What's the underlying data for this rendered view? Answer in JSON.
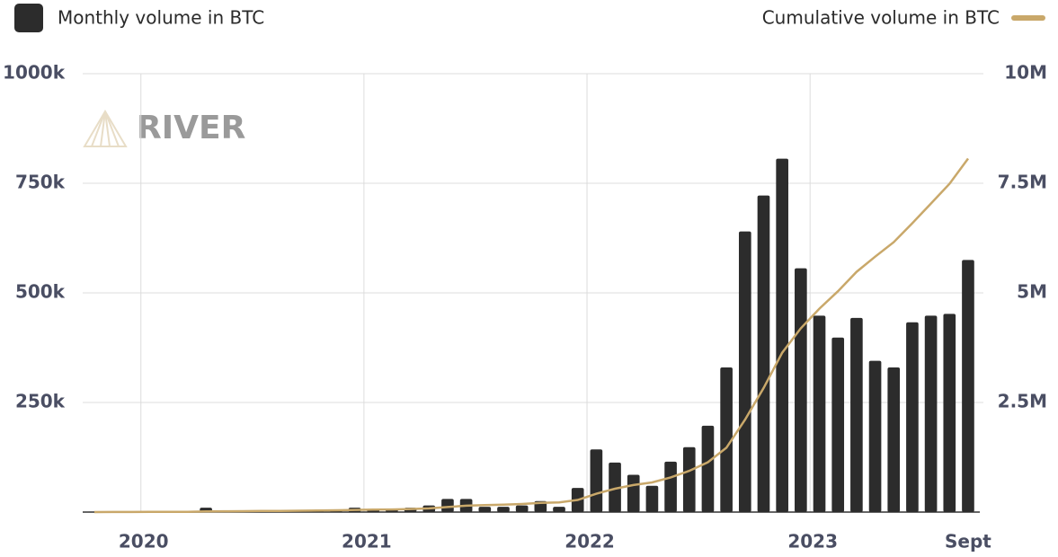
{
  "chart_data": {
    "type": "bar",
    "watermark": "RIVER",
    "categories": [
      null,
      null,
      null,
      "2020",
      null,
      null,
      null,
      null,
      null,
      null,
      null,
      null,
      null,
      null,
      null,
      "2021",
      null,
      null,
      null,
      null,
      null,
      null,
      null,
      null,
      null,
      null,
      null,
      "2022",
      null,
      null,
      null,
      null,
      null,
      null,
      null,
      null,
      null,
      null,
      null,
      "2023",
      null,
      null,
      null,
      null,
      null,
      null,
      null,
      "Sept"
    ],
    "series": [
      {
        "name": "Monthly volume in BTC",
        "color": "#2c2c2c",
        "values": [
          1000,
          1000,
          1000,
          1000,
          1000,
          2000,
          10000,
          2000,
          2000,
          3000,
          3000,
          4000,
          4000,
          5000,
          10000,
          5000,
          5000,
          10000,
          15000,
          30000,
          30000,
          12000,
          12000,
          15000,
          25000,
          12000,
          55000,
          143000,
          113000,
          85000,
          60000,
          115000,
          148000,
          197000,
          330000,
          640000,
          722000,
          806000,
          556000,
          448000,
          398000,
          443000,
          345000,
          330000,
          433000,
          448000,
          452000,
          575000
        ]
      },
      {
        "name": "Cumulative volume in BTC",
        "color": "#c9a86a",
        "type": "line",
        "axis": "y2",
        "values": [
          1000,
          2000,
          3000,
          4000,
          5000,
          7000,
          17000,
          19000,
          21000,
          24000,
          27000,
          31000,
          35000,
          40000,
          50000,
          55000,
          60000,
          70000,
          85000,
          115000,
          145000,
          157000,
          169000,
          184000,
          209000,
          221000,
          276000,
          419000,
          532000,
          617000,
          677000,
          792000,
          940000,
          1137000,
          1467000,
          2107000,
          2829000,
          3635000,
          4191000,
          4639000,
          5037000,
          5480000,
          5825000,
          6155000,
          6588000,
          7036000,
          7488000,
          8063000
        ]
      }
    ],
    "ylim": [
      0,
      1000000
    ],
    "yticks": [
      {
        "value": 250000,
        "label": "250k"
      },
      {
        "value": 500000,
        "label": "500k"
      },
      {
        "value": 750000,
        "label": "750k"
      },
      {
        "value": 1000000,
        "label": "1000k"
      }
    ],
    "y2lim": [
      0,
      10000000
    ],
    "y2ticks": [
      {
        "value": 2500000,
        "label": "2.5M"
      },
      {
        "value": 5000000,
        "label": "5M"
      },
      {
        "value": 7500000,
        "label": "7.5M"
      },
      {
        "value": 10000000,
        "label": "10M"
      }
    ],
    "grid": true
  }
}
